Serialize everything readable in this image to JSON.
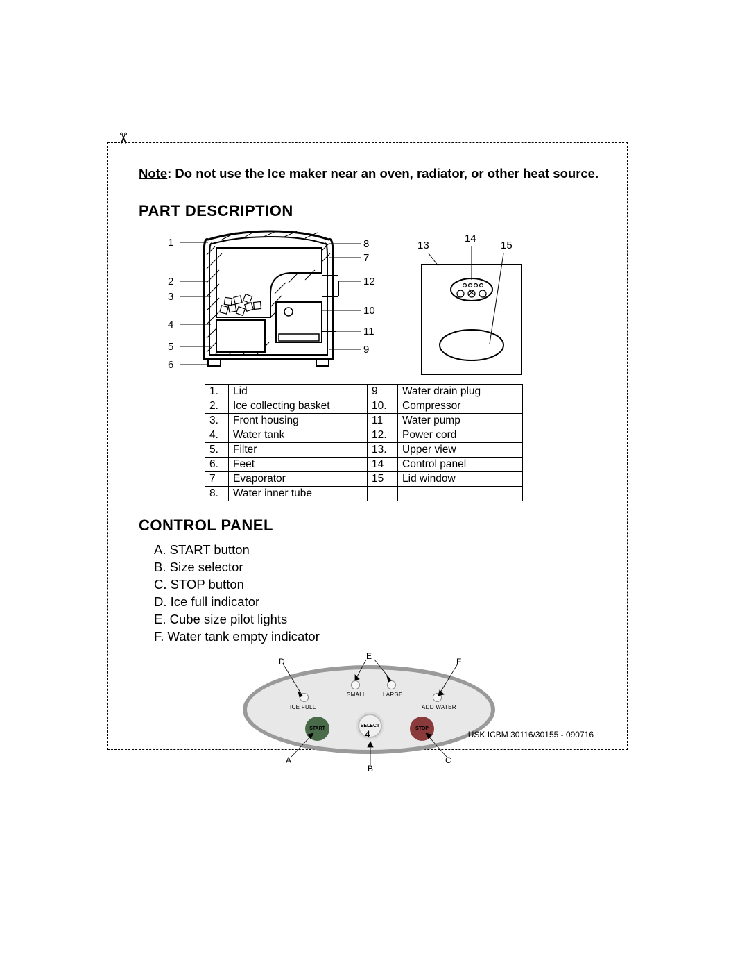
{
  "scissors_glyph": "✂",
  "note_label": "Note",
  "note_text": ": Do not use the Ice maker near an oven, radiator, or other heat source.",
  "section1_title": "PART DESCRIPTION",
  "diagram_left": {
    "left_callouts": [
      "1",
      "2",
      "3",
      "4",
      "5",
      "6"
    ],
    "right_callouts": [
      "8",
      "7",
      "12",
      "10",
      "11",
      "9"
    ]
  },
  "diagram_right": {
    "top_callouts": [
      "13",
      "14",
      "15"
    ]
  },
  "parts_table": {
    "rows": [
      [
        "1.",
        "Lid",
        "9",
        "Water drain plug"
      ],
      [
        "2.",
        "Ice collecting basket",
        "10.",
        "Compressor"
      ],
      [
        "3.",
        "Front housing",
        "11",
        "Water pump"
      ],
      [
        "4.",
        "Water tank",
        "12.",
        "Power cord"
      ],
      [
        "5.",
        "Filter",
        "13.",
        "Upper view"
      ],
      [
        "6.",
        "Feet",
        "14",
        "Control panel"
      ],
      [
        "7",
        "Evaporator",
        "15",
        "Lid window"
      ],
      [
        "8.",
        "Water inner tube",
        "",
        ""
      ]
    ]
  },
  "section2_title": "CONTROL PANEL",
  "control_list": [
    {
      "letter": "A.",
      "text": "START button"
    },
    {
      "letter": "B.",
      "text": "Size selector"
    },
    {
      "letter": "C.",
      "text": "STOP button"
    },
    {
      "letter": "D.",
      "text": "Ice full indicator"
    },
    {
      "letter": "E.",
      "text": "Cube size pilot lights"
    },
    {
      "letter": "F.",
      "text": "Water tank empty indicator"
    }
  ],
  "panel": {
    "labels": {
      "small": "SMALL",
      "large": "LARGE",
      "ice_full": "ICE FULL",
      "add_water": "ADD WATER",
      "start": "START",
      "select": "SELECT",
      "stop": "STOP"
    },
    "callouts": {
      "A": "A",
      "B": "B",
      "C": "C",
      "D": "D",
      "E": "E",
      "F": "F"
    },
    "colors": {
      "ellipse_bg": "#e8e8e8",
      "ellipse_border": "#9a9a9a",
      "btn_green": "#4a6b4a",
      "btn_red": "#8a3a3a",
      "btn_select_bg": "#f0f0f0",
      "led_bg": "#f6f6f6"
    }
  },
  "page_number": "4",
  "doc_id": "USK ICBM 30116/30155 - 090716"
}
